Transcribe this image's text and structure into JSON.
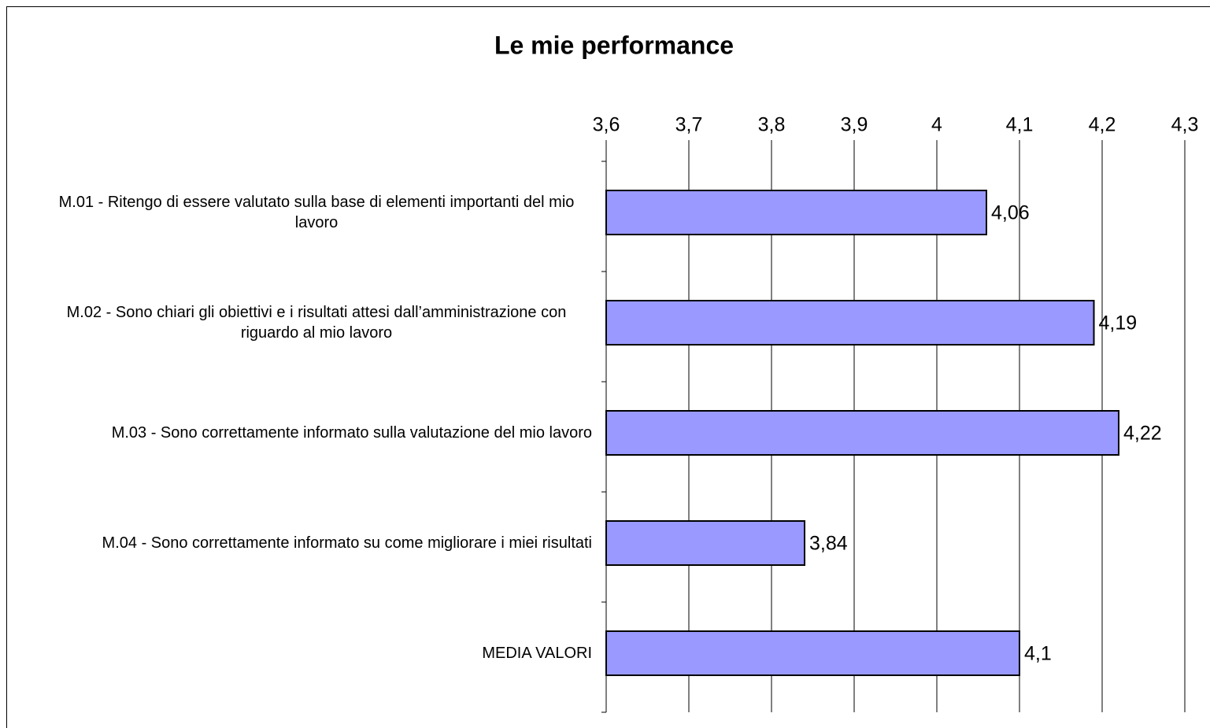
{
  "chart_data": {
    "type": "bar",
    "orientation": "horizontal",
    "title": "Le mie performance",
    "categories": [
      "M.01 - Ritengo di essere valutato sulla base di elementi importanti del mio lavoro",
      "M.02 - Sono chiari gli obiettivi e i risultati attesi dall’amministrazione con riguardo al mio lavoro",
      "M.03 - Sono correttamente informato sulla valutazione del mio lavoro",
      "M.04 - Sono correttamente informato su come migliorare i miei risultati",
      "MEDIA VALORI"
    ],
    "values": [
      4.06,
      4.19,
      4.22,
      3.84,
      4.1
    ],
    "value_labels": [
      "4,06",
      "4,19",
      "4,22",
      "3,84",
      "4,1"
    ],
    "color": "#9999ff",
    "xlim": [
      3.6,
      4.3
    ],
    "xticks": [
      {
        "value": 3.6,
        "label": "3,6"
      },
      {
        "value": 3.7,
        "label": "3,7"
      },
      {
        "value": 3.8,
        "label": "3,8"
      },
      {
        "value": 3.9,
        "label": "3,9"
      },
      4,
      {
        "value": 4.1,
        "label": "4,1"
      },
      {
        "value": 4.2,
        "label": "4,2"
      },
      {
        "value": 4.3,
        "label": "4,3"
      }
    ],
    "grid": true
  }
}
